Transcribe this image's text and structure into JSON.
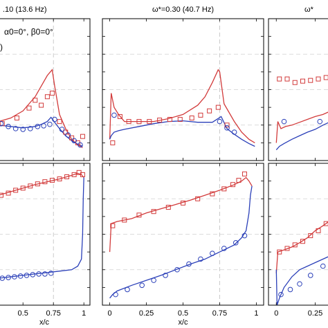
{
  "chart_data": [
    {
      "type": "line",
      "panel": "top-left",
      "title": ".10 (13.6 Hz)",
      "annotations": [
        "α0=0°, β0=0°",
        ")"
      ],
      "xlim": [
        0.3,
        1.05
      ],
      "ylim": [
        -1,
        1
      ],
      "xticks": [
        0.5,
        0.75,
        1
      ],
      "xtick_labels": [],
      "series": [
        {
          "color": "#d23a3a",
          "marker": "none",
          "x": [
            0.3,
            0.4,
            0.5,
            0.6,
            0.65,
            0.7,
            0.74,
            0.76,
            0.8,
            0.85,
            0.9,
            0.95,
            0.99
          ],
          "y": [
            -0.45,
            -0.4,
            -0.3,
            -0.1,
            0.05,
            0.2,
            0.28,
            0.05,
            -0.35,
            -0.55,
            -0.7,
            -0.78,
            -0.82
          ]
        },
        {
          "color": "#2a3fb8",
          "marker": "none",
          "x": [
            0.3,
            0.4,
            0.5,
            0.6,
            0.65,
            0.7,
            0.73,
            0.76,
            0.8,
            0.85,
            0.9,
            0.95,
            0.99
          ],
          "y": [
            -0.5,
            -0.52,
            -0.54,
            -0.52,
            -0.49,
            -0.45,
            -0.39,
            -0.46,
            -0.55,
            -0.65,
            -0.72,
            -0.77,
            -0.8
          ]
        },
        {
          "color": "#d23a3a",
          "marker": "square",
          "x": [
            0.33,
            0.45,
            0.55,
            0.6,
            0.65,
            0.7,
            0.74,
            0.8,
            0.85,
            0.9,
            0.95,
            0.99
          ],
          "y": [
            -0.48,
            -0.4,
            -0.26,
            -0.15,
            -0.22,
            -0.1,
            -0.05,
            -0.45,
            -0.6,
            -0.68,
            -0.75,
            -0.66
          ]
        },
        {
          "color": "#2a3fb8",
          "marker": "circle",
          "x": [
            0.32,
            0.38,
            0.44,
            0.5,
            0.56,
            0.62,
            0.67,
            0.72,
            0.76,
            0.82,
            0.87,
            0.92,
            0.97
          ],
          "y": [
            -0.48,
            -0.52,
            -0.55,
            -0.56,
            -0.55,
            -0.52,
            -0.51,
            -0.49,
            -0.42,
            -0.56,
            -0.64,
            -0.72,
            -0.78
          ]
        }
      ]
    },
    {
      "type": "line",
      "panel": "top-middle",
      "title": "ω*=0.30 (40.7 Hz)",
      "annotations": [],
      "xlim": [
        -0.05,
        1.05
      ],
      "ylim": [
        -1,
        1
      ],
      "xticks": [
        0,
        0.25,
        0.5,
        0.75,
        1
      ],
      "xtick_labels": [],
      "series": [
        {
          "color": "#d23a3a",
          "marker": "none",
          "x": [
            0,
            0.01,
            0.03,
            0.06,
            0.1,
            0.2,
            0.3,
            0.4,
            0.5,
            0.6,
            0.65,
            0.7,
            0.74,
            0.75,
            0.78,
            0.85,
            0.9,
            0.95,
            0.99
          ],
          "y": [
            -0.7,
            -0.05,
            -0.25,
            -0.35,
            -0.45,
            -0.45,
            -0.45,
            -0.41,
            -0.35,
            -0.22,
            -0.1,
            0.1,
            0.28,
            0.25,
            -0.2,
            -0.45,
            -0.6,
            -0.7,
            -0.75
          ]
        },
        {
          "color": "#2a3fb8",
          "marker": "none",
          "x": [
            0,
            0.01,
            0.03,
            0.06,
            0.1,
            0.2,
            0.3,
            0.4,
            0.5,
            0.6,
            0.7,
            0.76,
            0.8,
            0.85,
            0.9,
            0.95,
            0.99
          ],
          "y": [
            -0.7,
            -0.65,
            -0.6,
            -0.58,
            -0.56,
            -0.52,
            -0.48,
            -0.45,
            -0.44,
            -0.46,
            -0.46,
            -0.38,
            -0.55,
            -0.63,
            -0.7,
            -0.76,
            -0.8
          ]
        },
        {
          "color": "#d23a3a",
          "marker": "square",
          "x": [
            0.02,
            0.07,
            0.13,
            0.2,
            0.27,
            0.34,
            0.41,
            0.48,
            0.56,
            0.62,
            0.68,
            0.74,
            0.8
          ],
          "y": [
            -0.75,
            -0.38,
            -0.45,
            -0.45,
            -0.45,
            -0.43,
            -0.42,
            -0.42,
            -0.4,
            -0.36,
            -0.3,
            -0.25,
            -0.5
          ]
        },
        {
          "color": "#2a3fb8",
          "marker": "circle",
          "x": [
            0.03,
            0.75,
            0.8,
            0.85
          ],
          "y": [
            -0.36,
            -0.45,
            -0.54,
            -0.6
          ]
        }
      ]
    },
    {
      "type": "line",
      "panel": "top-right",
      "title": "ω*",
      "annotations": [],
      "xlim": [
        -0.05,
        0.35
      ],
      "ylim": [
        -1,
        1
      ],
      "xticks": [
        0,
        0.25
      ],
      "xtick_labels": [],
      "series": [
        {
          "color": "#d23a3a",
          "marker": "none",
          "x": [
            0,
            0.01,
            0.03,
            0.06,
            0.1,
            0.15,
            0.2,
            0.25,
            0.3,
            0.35
          ],
          "y": [
            -0.75,
            -0.45,
            -0.55,
            -0.52,
            -0.5,
            -0.46,
            -0.42,
            -0.38,
            -0.35,
            -0.3
          ]
        },
        {
          "color": "#2a3fb8",
          "marker": "none",
          "x": [
            0,
            0.02,
            0.05,
            0.1,
            0.15,
            0.2,
            0.25,
            0.3,
            0.35
          ],
          "y": [
            -0.85,
            -0.8,
            -0.76,
            -0.7,
            -0.65,
            -0.6,
            -0.56,
            -0.5,
            -0.45
          ]
        },
        {
          "color": "#d23a3a",
          "marker": "square",
          "x": [
            0.02,
            0.07,
            0.12,
            0.17,
            0.22,
            0.27,
            0.32
          ],
          "y": [
            0.15,
            0.15,
            0.1,
            0.12,
            0.13,
            0.15,
            0.17
          ]
        },
        {
          "color": "#2a3fb8",
          "marker": "circle",
          "x": [
            0.05,
            0.28
          ],
          "y": [
            -0.45,
            -0.45
          ]
        }
      ]
    },
    {
      "type": "line",
      "panel": "bottom-left",
      "title": "",
      "annotations": [],
      "xlim": [
        0.3,
        1.05
      ],
      "ylim": [
        -1,
        1
      ],
      "xticks": [
        0.5,
        0.75,
        1
      ],
      "xtick_labels": [
        "0.5",
        "0.75",
        "1"
      ],
      "xlabel": "x/c",
      "series": [
        {
          "color": "#d23a3a",
          "marker": "none",
          "x": [
            0.3,
            0.4,
            0.5,
            0.6,
            0.7,
            0.8,
            0.9,
            0.95,
            0.98,
            0.99,
            1.0
          ],
          "y": [
            0.55,
            0.6,
            0.65,
            0.7,
            0.74,
            0.78,
            0.83,
            0.86,
            0.84,
            0.82,
            0.8
          ]
        },
        {
          "color": "#2a3fb8",
          "marker": "none",
          "x": [
            0.3,
            0.4,
            0.5,
            0.6,
            0.7,
            0.8,
            0.9,
            0.95,
            0.98,
            0.99,
            0.995,
            1.0
          ],
          "y": [
            -0.62,
            -0.6,
            -0.58,
            -0.56,
            -0.54,
            -0.52,
            -0.5,
            -0.45,
            -0.35,
            0.0,
            0.5,
            0.8
          ]
        },
        {
          "color": "#d23a3a",
          "marker": "square",
          "x": [
            0.32,
            0.38,
            0.44,
            0.5,
            0.56,
            0.62,
            0.68,
            0.74,
            0.8,
            0.86,
            0.92,
            0.96,
            0.99
          ],
          "y": [
            0.55,
            0.58,
            0.62,
            0.65,
            0.68,
            0.71,
            0.74,
            0.76,
            0.78,
            0.81,
            0.84,
            0.87,
            0.84
          ]
        },
        {
          "color": "#2a3fb8",
          "marker": "circle",
          "x": [
            0.33,
            0.38,
            0.43,
            0.48,
            0.53,
            0.58,
            0.63,
            0.68,
            0.73
          ],
          "y": [
            -0.62,
            -0.61,
            -0.6,
            -0.59,
            -0.58,
            -0.57,
            -0.56,
            -0.56,
            -0.55
          ]
        }
      ]
    },
    {
      "type": "line",
      "panel": "bottom-middle",
      "title": "",
      "annotations": [],
      "xlim": [
        -0.05,
        1.05
      ],
      "ylim": [
        -1,
        1
      ],
      "xticks": [
        0,
        0.25,
        0.5,
        0.75,
        1
      ],
      "xtick_labels": [
        "0",
        "0.25",
        "0.5",
        "0.75",
        "1"
      ],
      "xlabel": "x/c",
      "series": [
        {
          "color": "#d23a3a",
          "marker": "none",
          "x": [
            0,
            0.01,
            0.05,
            0.15,
            0.25,
            0.35,
            0.45,
            0.55,
            0.65,
            0.75,
            0.85,
            0.9,
            0.93,
            0.95,
            0.97
          ],
          "y": [
            -0.25,
            0.15,
            0.18,
            0.22,
            0.3,
            0.36,
            0.42,
            0.48,
            0.55,
            0.62,
            0.7,
            0.75,
            0.8,
            0.75,
            0.68
          ]
        },
        {
          "color": "#2a3fb8",
          "marker": "none",
          "x": [
            0,
            0.02,
            0.05,
            0.15,
            0.25,
            0.35,
            0.45,
            0.55,
            0.65,
            0.75,
            0.85,
            0.9,
            0.93,
            0.95,
            0.96,
            0.97
          ],
          "y": [
            -0.9,
            -0.85,
            -0.8,
            -0.72,
            -0.65,
            -0.58,
            -0.5,
            -0.42,
            -0.35,
            -0.25,
            -0.15,
            -0.05,
            0.05,
            0.3,
            0.55,
            0.68
          ]
        },
        {
          "color": "#d23a3a",
          "marker": "square",
          "x": [
            0.02,
            0.1,
            0.2,
            0.3,
            0.4,
            0.5,
            0.6,
            0.7,
            0.78,
            0.84,
            0.88,
            0.92
          ],
          "y": [
            0.12,
            0.2,
            0.27,
            0.32,
            0.38,
            0.44,
            0.5,
            0.57,
            0.64,
            0.7,
            0.76,
            0.85
          ]
        },
        {
          "color": "#2a3fb8",
          "marker": "circle",
          "x": [
            0.04,
            0.12,
            0.22,
            0.3,
            0.38,
            0.46,
            0.54,
            0.62,
            0.7,
            0.78,
            0.86,
            0.92
          ],
          "y": [
            -0.85,
            -0.78,
            -0.72,
            -0.65,
            -0.58,
            -0.5,
            -0.42,
            -0.35,
            -0.27,
            -0.2,
            -0.12,
            -0.02
          ]
        }
      ]
    },
    {
      "type": "line",
      "panel": "bottom-right",
      "title": "",
      "annotations": [],
      "xlim": [
        -0.05,
        0.35
      ],
      "ylim": [
        -1,
        1
      ],
      "xticks": [
        0,
        0.25
      ],
      "xtick_labels": [
        "0",
        "0.25"
      ],
      "series": [
        {
          "color": "#d23a3a",
          "marker": "none",
          "x": [
            0,
            0.01,
            0.05,
            0.1,
            0.15,
            0.2,
            0.25,
            0.3,
            0.35
          ],
          "y": [
            -0.55,
            -0.25,
            -0.22,
            -0.18,
            -0.12,
            -0.05,
            0.05,
            0.12,
            0.2
          ]
        },
        {
          "color": "#2a3fb8",
          "marker": "none",
          "x": [
            0,
            0.005,
            0.02,
            0.05,
            0.1,
            0.15,
            0.2,
            0.25,
            0.3,
            0.35
          ],
          "y": [
            -0.5,
            -1.0,
            -0.9,
            -0.75,
            -0.6,
            -0.5,
            -0.45,
            -0.4,
            -0.35,
            -0.3
          ]
        },
        {
          "color": "#d23a3a",
          "marker": "square",
          "x": [
            0.02,
            0.07,
            0.12,
            0.17,
            0.22,
            0.27,
            0.32
          ],
          "y": [
            -0.25,
            -0.2,
            -0.15,
            -0.1,
            -0.02,
            0.05,
            0.15
          ]
        },
        {
          "color": "#2a3fb8",
          "marker": "circle",
          "x": [
            0.03,
            0.09,
            0.15,
            0.22,
            0.3
          ],
          "y": [
            -0.85,
            -0.78,
            -0.7,
            -0.58,
            -0.45
          ]
        }
      ]
    }
  ]
}
